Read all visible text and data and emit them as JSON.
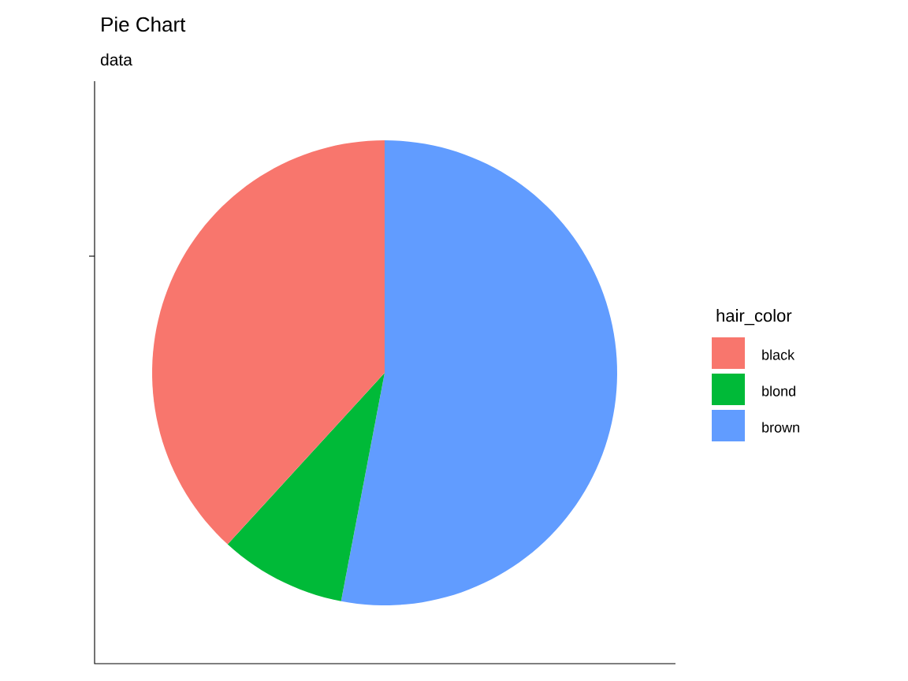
{
  "chart_data": {
    "type": "pie",
    "title": "Pie Chart",
    "subtitle": "data",
    "legend_title": "hair_color",
    "categories": [
      "black",
      "blond",
      "brown"
    ],
    "values": [
      38.2,
      8.8,
      53.0
    ],
    "colors": [
      "#f8766d",
      "#00ba38",
      "#619cff"
    ],
    "legend": "right"
  }
}
